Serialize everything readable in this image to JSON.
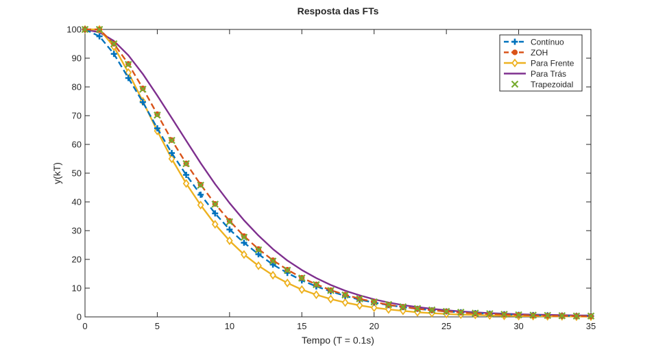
{
  "chart_data": {
    "type": "line",
    "title": "Resposta das FTs",
    "xlabel": "Tempo (T = 0.1s)",
    "ylabel": "y(kT)",
    "xlim": [
      0,
      35
    ],
    "ylim": [
      0,
      100
    ],
    "xticks": [
      0,
      5,
      10,
      15,
      20,
      25,
      30,
      35
    ],
    "yticks": [
      0,
      10,
      20,
      30,
      40,
      50,
      60,
      70,
      80,
      90,
      100
    ],
    "grid": false,
    "legend_position": "top-right",
    "x": [
      0,
      1,
      2,
      3,
      4,
      5,
      6,
      7,
      8,
      9,
      10,
      11,
      12,
      13,
      14,
      15,
      16,
      17,
      18,
      19,
      20,
      21,
      22,
      23,
      24,
      25,
      26,
      27,
      28,
      29,
      30,
      31,
      32,
      33,
      34,
      35
    ],
    "series": [
      {
        "name": "Contínuo",
        "color": "#0072BD",
        "line_style": "dashed",
        "marker": "plus",
        "values": [
          100,
          97.6,
          91.5,
          83.1,
          74.7,
          65.6,
          57.0,
          49.4,
          42.5,
          36.0,
          30.4,
          25.8,
          21.8,
          18.2,
          15.3,
          12.7,
          10.6,
          8.9,
          7.3,
          6.0,
          5.0,
          4.1,
          3.4,
          2.8,
          2.3,
          1.9,
          1.6,
          1.3,
          1.1,
          0.9,
          0.7,
          0.6,
          0.5,
          0.4,
          0.3,
          0.3
        ]
      },
      {
        "name": "ZOH",
        "color": "#D95319",
        "line_style": "dashed",
        "marker": "circle",
        "values": [
          100,
          100,
          95.0,
          88.0,
          79.5,
          70.5,
          61.5,
          53.4,
          46.0,
          39.3,
          33.4,
          28.1,
          23.6,
          19.7,
          16.4,
          13.6,
          11.3,
          9.3,
          7.7,
          6.3,
          5.2,
          4.2,
          3.5,
          2.8,
          2.3,
          1.9,
          1.5,
          1.2,
          1.0,
          0.8,
          0.7,
          0.5,
          0.4,
          0.4,
          0.3,
          0.2
        ]
      },
      {
        "name": "Para Frente",
        "color": "#EDB120",
        "line_style": "solid",
        "marker": "diamond",
        "values": [
          100,
          100,
          94.0,
          85.0,
          75.0,
          64.7,
          55.0,
          46.4,
          38.9,
          32.2,
          26.5,
          21.7,
          17.8,
          14.5,
          11.8,
          9.5,
          7.7,
          6.2,
          5.0,
          4.0,
          3.2,
          2.6,
          2.1,
          1.6,
          1.3,
          1.0,
          0.8,
          0.7,
          0.5,
          0.4,
          0.3,
          0.3,
          0.2,
          0.2,
          0.1,
          0.1
        ]
      },
      {
        "name": "Para Trás",
        "color": "#7E2F8E",
        "line_style": "solid",
        "marker": "none",
        "values": [
          100,
          99.0,
          96.0,
          91.0,
          84.5,
          77.0,
          69.2,
          61.3,
          53.5,
          46.2,
          39.6,
          33.6,
          28.3,
          23.6,
          19.6,
          16.3,
          13.5,
          11.1,
          9.1,
          7.5,
          6.1,
          5.0,
          4.1,
          3.4,
          2.8,
          2.3,
          1.9,
          1.6,
          1.3,
          1.1,
          0.9,
          0.8,
          0.7,
          0.6,
          0.5,
          0.5
        ]
      },
      {
        "name": "Trapezoidal",
        "color": "#77AC30",
        "line_style": "none",
        "marker": "x",
        "values": [
          100,
          100,
          95.0,
          87.8,
          79.2,
          70.2,
          61.4,
          53.3,
          45.8,
          39.2,
          33.1,
          27.7,
          23.3,
          19.4,
          16.2,
          13.5,
          11.2,
          9.2,
          7.6,
          6.3,
          5.2,
          4.3,
          3.5,
          2.9,
          2.4,
          1.9,
          1.6,
          1.3,
          1.1,
          0.9,
          0.7,
          0.6,
          0.5,
          0.4,
          0.3,
          0.3
        ]
      }
    ]
  }
}
